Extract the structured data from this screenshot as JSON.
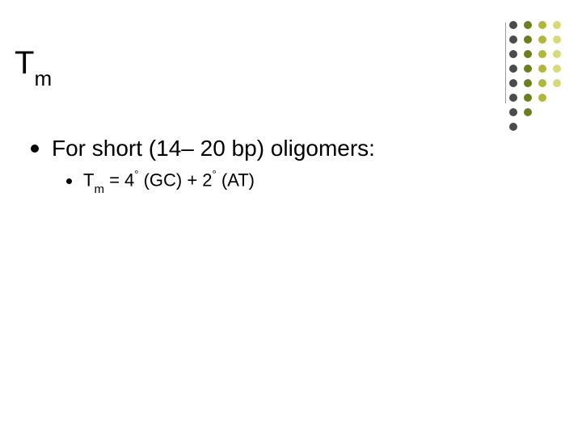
{
  "title_main": "T",
  "title_sub": "m",
  "l1_text": "For short (14– 20 bp) oligomers:",
  "l2_T": "T",
  "l2_m": "m",
  "l2_eq": " =  4",
  "l2_deg1": "°",
  "l2_gc": " (GC) + 2",
  "l2_deg2": "°",
  "l2_at": " (AT)",
  "deco": {
    "cols": [
      {
        "dots": [
          "#4b4b4b",
          "#4b4b4b",
          "#4b4b4b",
          "#4b4b4b",
          "#4b4b4b",
          "#4b4b4b",
          "#4b4b4b",
          "#4b4b4b"
        ]
      },
      {
        "dots": [
          "#6b7f1f",
          "#6b7f1f",
          "#6b7f1f",
          "#6b7f1f",
          "#6b7f1f",
          "#6b7f1f",
          "#6b7f1f"
        ]
      },
      {
        "dots": [
          "#b0b83a",
          "#b0b83a",
          "#b0b83a",
          "#b0b83a",
          "#b0b83a",
          "#b0b83a"
        ]
      },
      {
        "dots": [
          "#d7d97a",
          "#d7d97a",
          "#d7d97a",
          "#d7d97a",
          "#d7d97a"
        ]
      }
    ]
  },
  "colors": {
    "background": "#ffffff",
    "text": "#000000",
    "divider": "#9a9a9a"
  },
  "fontsize": {
    "title": 40,
    "title_sub": 26,
    "l1": 28,
    "l2": 22
  }
}
